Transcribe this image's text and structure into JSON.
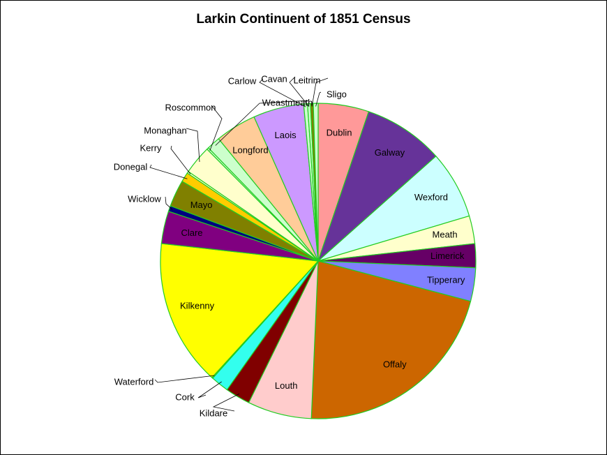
{
  "chart_data": {
    "type": "pie",
    "title": "Larkin Continuent of 1851 Census",
    "slice_border_color": "#22cc22",
    "slices": [
      {
        "label": "Dublin",
        "value": 5.3,
        "color": "#ff9999"
      },
      {
        "label": "Galway",
        "value": 8.4,
        "color": "#663399"
      },
      {
        "label": "Wexford",
        "value": 7.1,
        "color": "#ccffff"
      },
      {
        "label": "Meath",
        "value": 2.9,
        "color": "#ffffcc"
      },
      {
        "label": "Limerick",
        "value": 2.5,
        "color": "#660066"
      },
      {
        "label": "Tipperary",
        "value": 3.5,
        "color": "#8080ff"
      },
      {
        "label": "Offaly",
        "value": 22.0,
        "color": "#cc6600"
      },
      {
        "label": "Louth",
        "value": 6.7,
        "color": "#ffcccc"
      },
      {
        "label": "Kildare",
        "value": 2.6,
        "color": "#800000"
      },
      {
        "label": "Cork",
        "value": 1.9,
        "color": "#33ffee"
      },
      {
        "label": "Waterford",
        "value": 0.1,
        "color": "#ffff99"
      },
      {
        "label": "Kilkenny",
        "value": 15.3,
        "color": "#ffff00"
      },
      {
        "label": "Clare",
        "value": 3.4,
        "color": "#800080"
      },
      {
        "label": "Wicklow",
        "value": 0.6,
        "color": "#000080"
      },
      {
        "label": "Mayo",
        "value": 2.8,
        "color": "#808000"
      },
      {
        "label": "Donegal",
        "value": 1.0,
        "color": "#ffcc00"
      },
      {
        "label": "Kerry",
        "value": 0.2,
        "color": "#ffffcc"
      },
      {
        "label": "Monaghan",
        "value": 3.0,
        "color": "#ffffcc"
      },
      {
        "label": "Roscommon",
        "value": 0.2,
        "color": "#ccffcc"
      },
      {
        "label": "Weastmeath",
        "value": 1.4,
        "color": "#ccffcc"
      },
      {
        "label": "Longford",
        "value": 4.3,
        "color": "#ffcc99"
      },
      {
        "label": "Laois",
        "value": 5.3,
        "color": "#cc99ff"
      },
      {
        "label": "Carlow",
        "value": 0.4,
        "color": "#ccffcc"
      },
      {
        "label": "Cavan",
        "value": 0.3,
        "color": "#ccffcc"
      },
      {
        "label": "Leitrim",
        "value": 0.3,
        "color": "#808000"
      },
      {
        "label": "Sligo",
        "value": 0.5,
        "color": "#ccffcc"
      }
    ]
  }
}
